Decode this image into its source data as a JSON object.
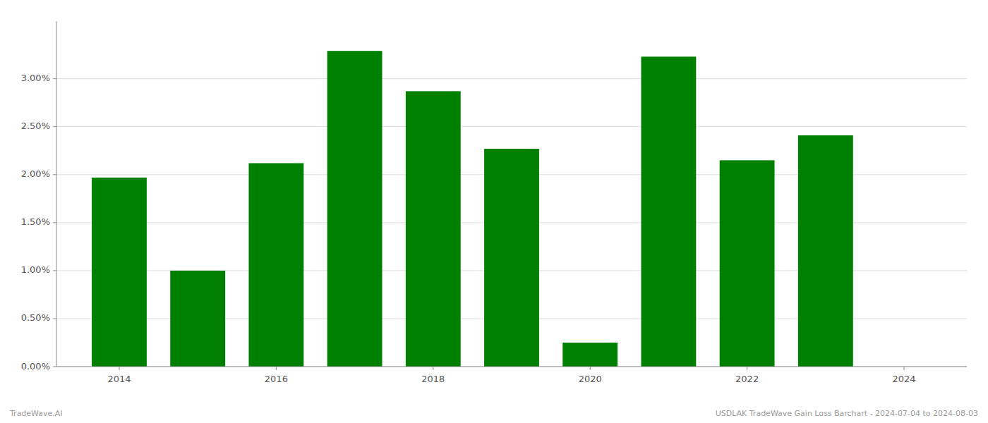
{
  "chart_data": {
    "type": "bar",
    "x": [
      2014,
      2015,
      2016,
      2017,
      2018,
      2019,
      2020,
      2021,
      2022,
      2023
    ],
    "values": [
      0.0197,
      0.01,
      0.0212,
      0.0329,
      0.0287,
      0.0227,
      0.0025,
      0.0323,
      0.0215,
      0.0241
    ],
    "color": "#008000",
    "ylim": [
      0,
      0.036
    ],
    "yticks": [
      {
        "value": 0.0,
        "label": "0.00%"
      },
      {
        "value": 0.005,
        "label": "0.50%"
      },
      {
        "value": 0.01,
        "label": "1.00%"
      },
      {
        "value": 0.015,
        "label": "1.50%"
      },
      {
        "value": 0.02,
        "label": "2.00%"
      },
      {
        "value": 0.025,
        "label": "2.50%"
      },
      {
        "value": 0.03,
        "label": "3.00%"
      }
    ],
    "xlim": [
      2013.2,
      2024.8
    ],
    "xticks": [
      2014,
      2016,
      2018,
      2020,
      2022,
      2024
    ],
    "grid": true,
    "annotations": [
      "TradeWave.AI",
      "USDLAK TradeWave Gain Loss Barchart - 2024-07-04 to 2024-08-03"
    ]
  }
}
